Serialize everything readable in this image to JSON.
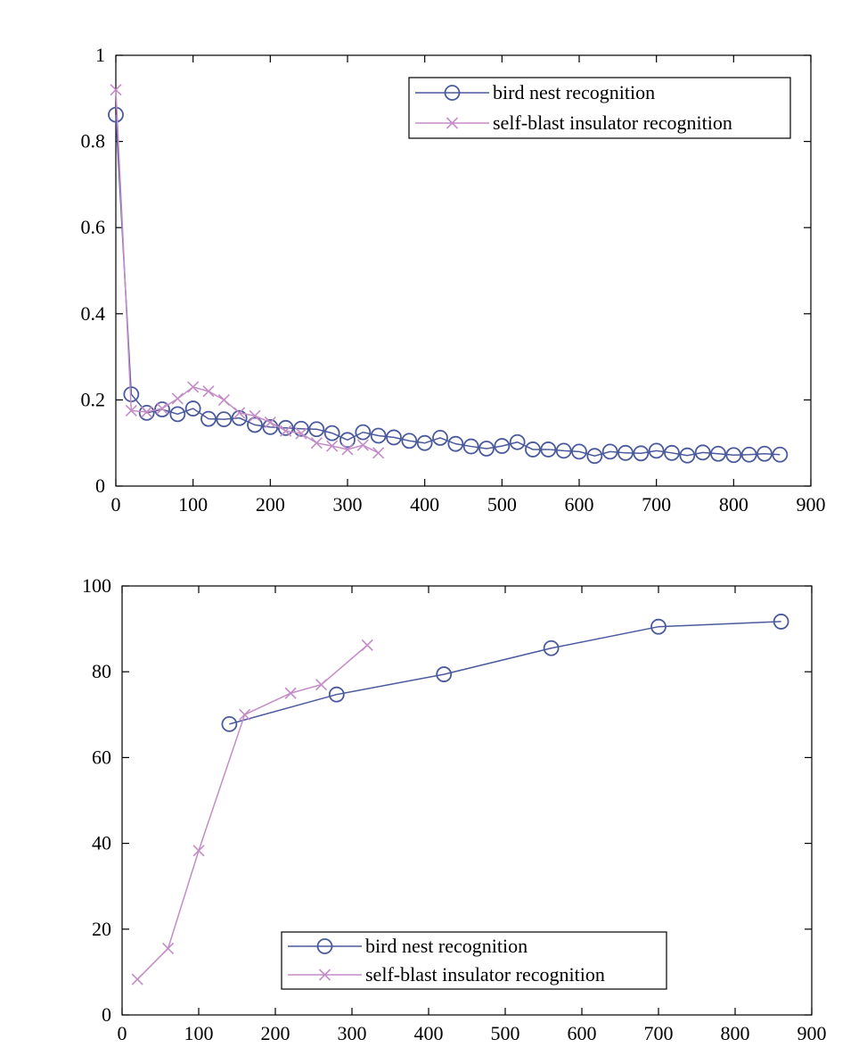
{
  "chart_data": [
    {
      "type": "line",
      "title": "",
      "xlabel": "",
      "ylabel": "",
      "xlim": [
        0,
        900
      ],
      "ylim": [
        0,
        1
      ],
      "x_ticks": [
        0,
        100,
        200,
        300,
        400,
        500,
        600,
        700,
        800,
        900
      ],
      "y_ticks": [
        0,
        0.2,
        0.4,
        0.6,
        0.8,
        1
      ],
      "y_tick_labels": [
        "0",
        "0.2",
        "0.4",
        "0.6",
        "0.8",
        "1"
      ],
      "grid": false,
      "legend_position": "top-right",
      "series": [
        {
          "name": "bird nest recognition",
          "color": "#4a5a9c",
          "marker": "circle",
          "x": [
            0,
            20,
            40,
            60,
            80,
            100,
            120,
            140,
            160,
            180,
            200,
            220,
            240,
            260,
            280,
            300,
            320,
            340,
            360,
            380,
            400,
            420,
            440,
            460,
            480,
            500,
            520,
            540,
            560,
            580,
            600,
            620,
            640,
            660,
            680,
            700,
            720,
            740,
            760,
            780,
            800,
            820,
            840,
            860
          ],
          "y": [
            0.862,
            0.213,
            0.17,
            0.178,
            0.167,
            0.18,
            0.156,
            0.155,
            0.158,
            0.142,
            0.137,
            0.135,
            0.133,
            0.132,
            0.123,
            0.107,
            0.125,
            0.117,
            0.113,
            0.105,
            0.1,
            0.112,
            0.098,
            0.092,
            0.087,
            0.093,
            0.102,
            0.085,
            0.085,
            0.082,
            0.08,
            0.07,
            0.08,
            0.077,
            0.076,
            0.082,
            0.077,
            0.071,
            0.078,
            0.075,
            0.072,
            0.073,
            0.075,
            0.073
          ]
        },
        {
          "name": "self-blast insulator recognition",
          "color": "#c48cc6",
          "marker": "x",
          "x": [
            0,
            20,
            40,
            60,
            80,
            100,
            120,
            140,
            160,
            180,
            200,
            220,
            240,
            260,
            280,
            300,
            320,
            340
          ],
          "y": [
            0.92,
            0.175,
            0.172,
            0.18,
            0.203,
            0.23,
            0.22,
            0.2,
            0.17,
            0.163,
            0.148,
            0.128,
            0.122,
            0.1,
            0.093,
            0.085,
            0.095,
            0.077
          ]
        }
      ]
    },
    {
      "type": "line",
      "title": "",
      "xlabel": "",
      "ylabel": "",
      "xlim": [
        0,
        900
      ],
      "ylim": [
        0,
        100
      ],
      "x_ticks": [
        0,
        100,
        200,
        300,
        400,
        500,
        600,
        700,
        800,
        900
      ],
      "y_ticks": [
        0,
        20,
        40,
        60,
        80,
        100
      ],
      "y_tick_labels": [
        "0",
        "20",
        "40",
        "60",
        "80",
        "100"
      ],
      "grid": false,
      "legend_position": "bottom-center",
      "series": [
        {
          "name": "bird nest recognition",
          "color": "#4a5a9c",
          "marker": "circle",
          "x": [
            140,
            280,
            420,
            560,
            700,
            860
          ],
          "y": [
            67.8,
            74.7,
            79.4,
            85.5,
            90.5,
            91.7
          ]
        },
        {
          "name": "self-blast insulator recognition",
          "color": "#c48cc6",
          "marker": "x",
          "x": [
            20,
            60,
            100,
            160,
            220,
            260,
            320
          ],
          "y": [
            8.3,
            15.5,
            38.3,
            70.0,
            75.0,
            77.0,
            86.2
          ]
        }
      ]
    }
  ]
}
